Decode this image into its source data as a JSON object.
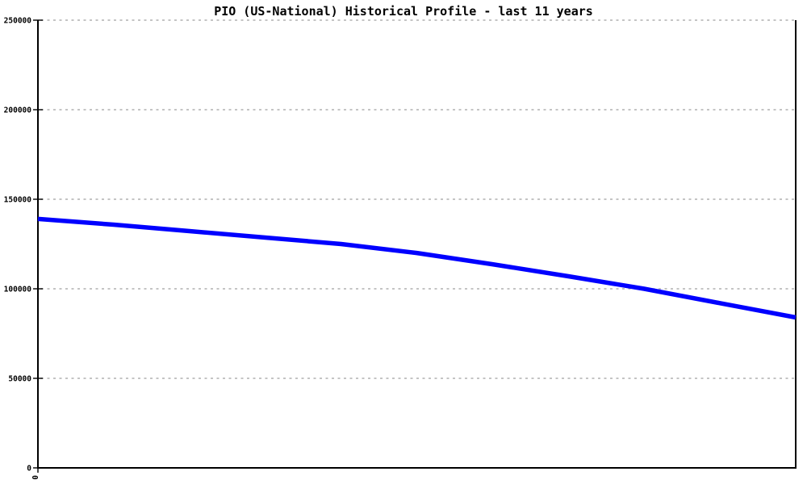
{
  "chart_data": {
    "type": "line",
    "title": "PIO (US-National) Historical Profile - last 11 years",
    "xlabel": "",
    "ylabel": "",
    "x": [
      0,
      1,
      2,
      3,
      4,
      5,
      6,
      7,
      8,
      9,
      10
    ],
    "values": [
      139000,
      135800,
      132200,
      128600,
      125000,
      120000,
      113700,
      107000,
      100000,
      92000,
      84000
    ],
    "series_name": "PIO US-National historical profile",
    "ylim": [
      0,
      250000
    ],
    "years_span": 11,
    "yticks": [
      0,
      50000,
      100000,
      150000,
      200000,
      250000
    ],
    "ytick_labels": [
      "0",
      "50000",
      "100000",
      "150000",
      "200000",
      "250000"
    ],
    "xtick_labels": [
      "0"
    ],
    "legend": "none",
    "grid": "dotted-horizontal",
    "colors": {
      "line": "#0000ff",
      "axis": "#000000",
      "grid": "#b0b0b0",
      "title": "#000000",
      "background": "#ffffff"
    }
  }
}
